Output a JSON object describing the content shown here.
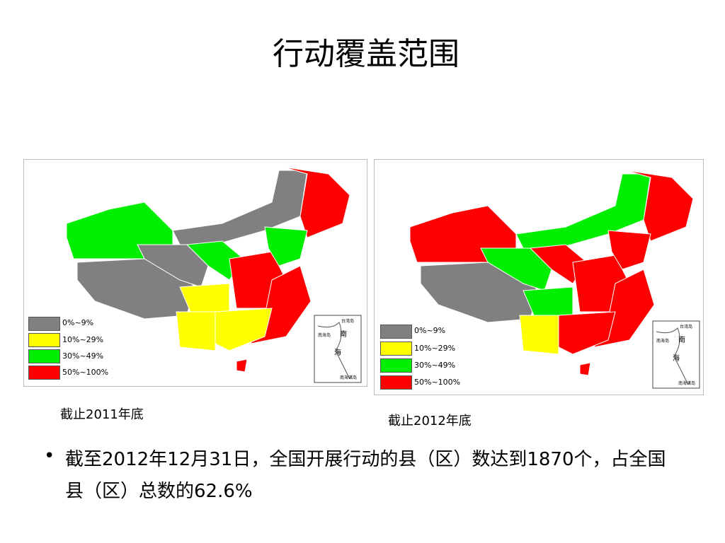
{
  "title": "行动覆盖范围",
  "maps": [
    {
      "legend": [
        {
          "label": "0%~9%",
          "color": "#808080"
        },
        {
          "label": "10%~29%",
          "color": "#ffff00"
        },
        {
          "label": "30%~49%",
          "color": "#00ee00"
        },
        {
          "label": "50%~100%",
          "color": "#ff0000"
        }
      ],
      "inset": {
        "top": "台湾岛",
        "left": "南海岛",
        "sea1": "南",
        "sea2": "海",
        "bottom": "南海诸岛"
      },
      "caption": "截止2011年底"
    },
    {
      "legend": [
        {
          "label": "0%~9%",
          "color": "#808080"
        },
        {
          "label": "10%~29%",
          "color": "#ffff00"
        },
        {
          "label": "30%~49%",
          "color": "#00ee00"
        },
        {
          "label": "50%~100%",
          "color": "#ff0000"
        }
      ],
      "inset": {
        "top": "台湾岛",
        "left": "南海岛",
        "sea1": "南",
        "sea2": "海",
        "bottom": "南海诸岛"
      },
      "caption": "截止2012年底"
    }
  ],
  "bullet": "截至2012年12月31日，全国开展行动的县（区）数达到1870个，占全国县（区）总数的62.6%"
}
